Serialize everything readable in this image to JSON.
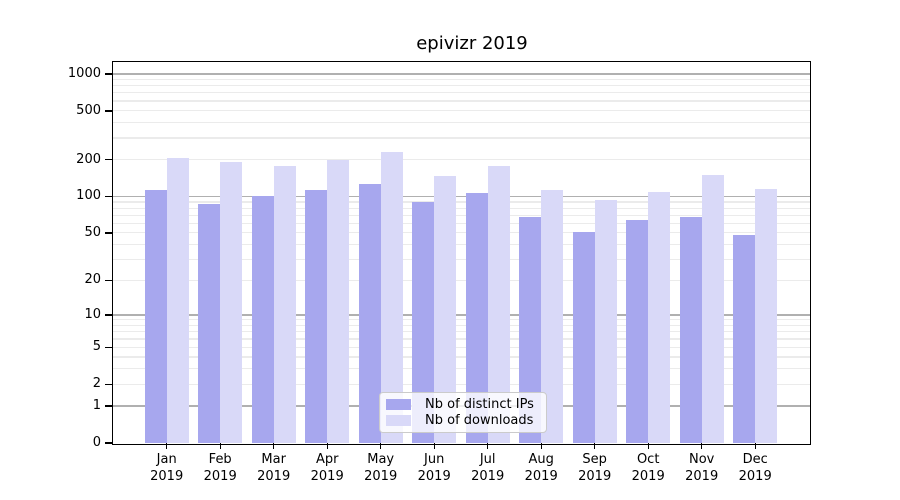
{
  "chart_data": {
    "type": "bar",
    "title": "epivizr 2019",
    "year": "2019",
    "categories": [
      "Jan",
      "Feb",
      "Mar",
      "Apr",
      "May",
      "Jun",
      "Jul",
      "Aug",
      "Sep",
      "Oct",
      "Nov",
      "Dec"
    ],
    "series": [
      {
        "name": "Nb of distinct IPs",
        "color": "#a7a7ee",
        "values": [
          112,
          87,
          101,
          112,
          127,
          90,
          106,
          68,
          51,
          64,
          68,
          48
        ]
      },
      {
        "name": "Nb of downloads",
        "color": "#d9d9f8",
        "values": [
          207,
          192,
          176,
          199,
          233,
          146,
          179,
          114,
          94,
          108,
          150,
          116
        ]
      }
    ],
    "yscale": "log1p",
    "yticks": [
      0,
      1,
      2,
      5,
      10,
      20,
      50,
      100,
      200,
      500,
      1000
    ],
    "ylim": [
      0,
      1250
    ],
    "xlabel": "",
    "ylabel": "",
    "grid": true,
    "legend_position": "lower-center",
    "colors": {
      "major_grid": "#b0b0b0",
      "minor_grid": "#ebebeb",
      "axis": "#000000",
      "background": "#ffffff"
    }
  }
}
